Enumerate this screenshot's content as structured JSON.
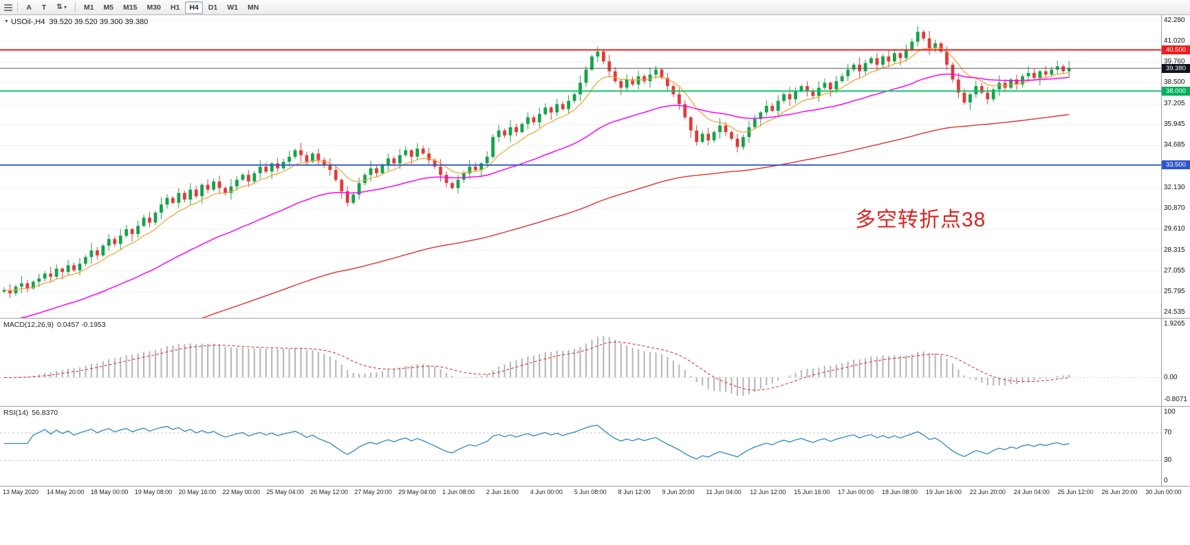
{
  "toolbar": {
    "tool_buttons": [
      {
        "name": "arrow-tool",
        "label": "A"
      },
      {
        "name": "text-tool",
        "label": "T"
      }
    ],
    "arrows_tool_icon": "⇅",
    "caret_icon": "▾",
    "timeframes": [
      "M1",
      "M5",
      "M15",
      "M30",
      "H1",
      "H4",
      "D1",
      "W1",
      "MN"
    ],
    "active_timeframe": "H4"
  },
  "main": {
    "symbol_title": "USOil-,H4",
    "ohlc": "39.520 39.520 39.300 39.380",
    "dropdown_icon": "▼",
    "price_scale": {
      "max": 42.28,
      "min": 24.535
    },
    "axis_ticks": [
      "42.280",
      "41.020",
      "39.760",
      "38.500",
      "37.205",
      "35.945",
      "34.685",
      "32.130",
      "30.870",
      "29.610",
      "28.315",
      "27.055",
      "25.795",
      "24.535"
    ],
    "badges": [
      {
        "label": "40.500",
        "price": 40.5,
        "bg": "#ee1c1c"
      },
      {
        "label": "39.380",
        "price": 39.38,
        "bg": "#10141e"
      },
      {
        "label": "38.000",
        "price": 38.0,
        "bg": "#00b05c"
      },
      {
        "label": "33.500",
        "price": 33.5,
        "bg": "#2f55cc"
      }
    ],
    "hlines": [
      {
        "price": 40.5,
        "color": "#ee1c1c",
        "width": 2
      },
      {
        "price": 38.0,
        "color": "#00c462",
        "width": 1.8
      },
      {
        "price": 33.5,
        "color": "#2f55cc",
        "width": 1.8
      }
    ],
    "price_line": {
      "price": 39.38,
      "color": "#555566"
    },
    "annotation": {
      "text": "多空转折点38",
      "color": "#e02020"
    }
  },
  "macd": {
    "label": "MACD(12,26,9)",
    "values": "0.0457 -0.1953",
    "axis": [
      "1.9265",
      "0.00",
      "-0.8071"
    ],
    "scale_max": 1.9265,
    "scale_min": -0.8071,
    "fast": 12,
    "slow": 26,
    "signal": 9,
    "bar_color": "#b4b4b4",
    "signal_color": "#e02020"
  },
  "rsi": {
    "label": "RSI(14)",
    "value": "56.8370",
    "period": 14,
    "axis": [
      100,
      70,
      30,
      0
    ],
    "levels": [
      70,
      30
    ],
    "line_color": "#2e86c1"
  },
  "time_axis": {
    "labels": [
      "13 May 2020",
      "14 May 20:00",
      "18 May 00:00",
      "19 May 08:00",
      "20 May 16:00",
      "22 May 00:00",
      "25 May 04:00",
      "26 May 12:00",
      "27 May 20:00",
      "29 May 04:00",
      "1 Jun 08:00",
      "2 Jun 16:00",
      "4 Jun 00:00",
      "5 Jun 08:00",
      "8 Jun 12:00",
      "9 Jun 20:00",
      "11 Jun 04:00",
      "12 Jun 12:00",
      "15 Jun 16:00",
      "17 Jun 00:00",
      "18 Jun 08:00",
      "19 Jun 16:00",
      "22 Jun 20:00",
      "24 Jun 04:00",
      "25 Jun 12:00",
      "26 Jun 20:00",
      "30 Jun 00:00"
    ]
  },
  "chart_data": {
    "type": "candlestick",
    "symbol": "USOil",
    "timeframe": "H4",
    "up_color": "#16a34a",
    "down_color": "#e23a3a",
    "first_open": 25.8,
    "closes": [
      25.9,
      25.7,
      26.1,
      26.3,
      26.0,
      26.4,
      26.6,
      26.9,
      26.7,
      27.2,
      27.0,
      27.4,
      27.1,
      27.5,
      27.9,
      28.3,
      28.0,
      28.6,
      29.0,
      28.7,
      29.2,
      29.6,
      29.3,
      29.8,
      30.3,
      30.0,
      30.6,
      31.1,
      31.5,
      31.2,
      31.8,
      31.4,
      32.0,
      31.6,
      32.3,
      32.0,
      32.5,
      32.1,
      31.8,
      32.2,
      32.6,
      32.9,
      32.5,
      33.0,
      33.4,
      33.1,
      33.6,
      33.3,
      33.7,
      34.0,
      34.4,
      34.1,
      33.7,
      34.2,
      33.8,
      33.5,
      33.2,
      32.6,
      31.9,
      31.2,
      31.7,
      32.4,
      32.9,
      33.3,
      33.0,
      33.5,
      33.9,
      33.6,
      34.1,
      34.4,
      34.0,
      34.5,
      34.2,
      33.8,
      33.4,
      32.9,
      32.4,
      32.1,
      32.6,
      33.0,
      33.4,
      33.2,
      33.6,
      34.0,
      35.2,
      35.6,
      35.3,
      35.8,
      35.5,
      36.0,
      36.4,
      36.1,
      36.6,
      37.0,
      36.7,
      37.2,
      36.9,
      37.4,
      37.8,
      38.5,
      39.3,
      40.1,
      40.4,
      39.8,
      39.2,
      38.6,
      38.2,
      38.7,
      38.4,
      38.9,
      38.6,
      39.0,
      39.3,
      38.8,
      38.3,
      37.8,
      37.2,
      36.4,
      35.6,
      34.9,
      35.4,
      35.0,
      35.5,
      35.9,
      35.5,
      35.1,
      34.6,
      35.2,
      35.8,
      36.3,
      36.7,
      37.1,
      36.8,
      37.4,
      37.8,
      37.5,
      38.0,
      38.3,
      38.0,
      37.7,
      38.2,
      38.5,
      38.1,
      38.6,
      38.9,
      39.3,
      39.6,
      39.2,
      39.7,
      40.0,
      39.6,
      40.1,
      39.8,
      40.3,
      40.0,
      40.5,
      41.0,
      41.6,
      41.2,
      40.6,
      40.9,
      40.4,
      39.6,
      38.7,
      37.9,
      37.3,
      37.8,
      38.3,
      37.9,
      37.5,
      38.1,
      38.5,
      38.2,
      38.7,
      38.4,
      38.9,
      39.1,
      38.8,
      39.2,
      39.0,
      39.3,
      39.5,
      39.2,
      39.38
    ],
    "wick_pattern": [
      0.18,
      0.35,
      0.12,
      0.45,
      0.22,
      0.1,
      0.3,
      0.15,
      0.4,
      0.25,
      0.08,
      0.33
    ],
    "moving_averages": [
      {
        "name": "ma-fast",
        "period": 9,
        "color": "#f0a030",
        "seed": null,
        "width": 1.2
      },
      {
        "name": "ma-mid",
        "period": 40,
        "color": "#ff00ff",
        "seed": 23.8,
        "width": 1.5
      },
      {
        "name": "ma-slow",
        "period": 124,
        "color": "#e03030",
        "seed": 20.5,
        "width": 1.4
      }
    ]
  }
}
